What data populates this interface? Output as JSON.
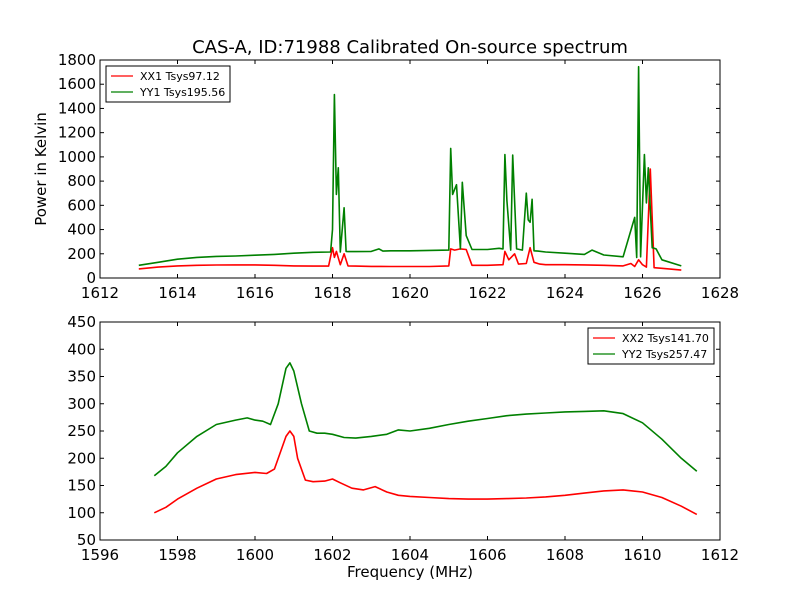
{
  "figure": {
    "title": "CAS-A, ID:71988 Calibrated On-source spectrum"
  },
  "chart_data": [
    {
      "type": "line",
      "title": "CAS-A, ID:71988 Calibrated On-source spectrum",
      "xlabel": "",
      "ylabel": "Power in Kelvin",
      "xlim": [
        1612,
        1628
      ],
      "ylim": [
        0,
        1800
      ],
      "xticks": [
        1612,
        1614,
        1616,
        1618,
        1620,
        1622,
        1624,
        1626,
        1628
      ],
      "yticks": [
        0,
        200,
        400,
        600,
        800,
        1000,
        1200,
        1400,
        1600,
        1800
      ],
      "grid": false,
      "legend": {
        "position": "top-left"
      },
      "series": [
        {
          "name": "XX1 Tsys97.12",
          "color": "#ff0000",
          "x": [
            1613.0,
            1613.5,
            1614.0,
            1614.5,
            1615.0,
            1615.5,
            1616.0,
            1616.5,
            1617.0,
            1617.5,
            1617.9,
            1618.0,
            1618.05,
            1618.1,
            1618.2,
            1618.3,
            1618.4,
            1618.6,
            1619.0,
            1619.5,
            1620.0,
            1620.5,
            1621.0,
            1621.05,
            1621.15,
            1621.3,
            1621.45,
            1621.6,
            1622.0,
            1622.4,
            1622.45,
            1622.55,
            1622.7,
            1622.8,
            1623.0,
            1623.1,
            1623.2,
            1623.35,
            1623.5,
            1624.0,
            1624.5,
            1625.0,
            1625.5,
            1625.7,
            1625.8,
            1625.9,
            1626.0,
            1626.1,
            1626.2,
            1626.3,
            1626.5,
            1627.0
          ],
          "y": [
            75,
            90,
            100,
            105,
            107,
            108,
            108,
            105,
            100,
            98,
            98,
            250,
            170,
            220,
            110,
            200,
            100,
            98,
            96,
            95,
            95,
            95,
            100,
            240,
            230,
            240,
            235,
            105,
            105,
            110,
            220,
            150,
            200,
            115,
            120,
            250,
            130,
            115,
            110,
            110,
            108,
            105,
            100,
            120,
            95,
            150,
            110,
            90,
            900,
            85,
            80,
            65
          ]
        },
        {
          "name": "YY1 Tsys195.56",
          "color": "#008000",
          "x": [
            1613.0,
            1613.5,
            1614.0,
            1614.5,
            1615.0,
            1615.5,
            1616.0,
            1616.5,
            1617.0,
            1617.5,
            1617.95,
            1618.0,
            1618.05,
            1618.1,
            1618.15,
            1618.2,
            1618.3,
            1618.35,
            1618.4,
            1618.6,
            1619.0,
            1619.2,
            1619.3,
            1619.5,
            1620.0,
            1620.5,
            1621.0,
            1621.05,
            1621.1,
            1621.2,
            1621.3,
            1621.35,
            1621.45,
            1621.6,
            1622.0,
            1622.3,
            1622.4,
            1622.45,
            1622.5,
            1622.6,
            1622.65,
            1622.75,
            1622.9,
            1623.0,
            1623.05,
            1623.1,
            1623.15,
            1623.2,
            1623.3,
            1623.5,
            1624.0,
            1624.5,
            1624.7,
            1625.0,
            1625.5,
            1625.8,
            1625.85,
            1625.9,
            1625.95,
            1626.05,
            1626.1,
            1626.15,
            1626.25,
            1626.35,
            1626.5,
            1627.0
          ],
          "y": [
            105,
            130,
            155,
            170,
            178,
            182,
            188,
            195,
            205,
            212,
            215,
            400,
            1515,
            690,
            910,
            215,
            580,
            220,
            218,
            218,
            220,
            240,
            222,
            225,
            225,
            228,
            230,
            1070,
            690,
            770,
            240,
            790,
            350,
            235,
            235,
            245,
            240,
            1020,
            640,
            230,
            1015,
            240,
            230,
            700,
            480,
            460,
            650,
            225,
            222,
            215,
            205,
            195,
            230,
            190,
            175,
            500,
            170,
            1745,
            175,
            1020,
            620,
            910,
            250,
            240,
            150,
            100
          ]
        }
      ]
    },
    {
      "type": "line",
      "title": "",
      "xlabel": "Frequency (MHz)",
      "ylabel": "",
      "xlim": [
        1596,
        1612
      ],
      "ylim": [
        50,
        450
      ],
      "xticks": [
        1596,
        1598,
        1600,
        1602,
        1604,
        1606,
        1608,
        1610,
        1612
      ],
      "yticks": [
        50,
        100,
        150,
        200,
        250,
        300,
        350,
        400,
        450
      ],
      "grid": false,
      "legend": {
        "position": "top-right"
      },
      "series": [
        {
          "name": "XX2 Tsys141.70",
          "color": "#ff0000",
          "x": [
            1597.4,
            1597.7,
            1598.0,
            1598.5,
            1599.0,
            1599.5,
            1600.0,
            1600.3,
            1600.5,
            1600.8,
            1600.9,
            1601.0,
            1601.1,
            1601.3,
            1601.5,
            1601.8,
            1602.0,
            1602.2,
            1602.5,
            1602.8,
            1603.1,
            1603.4,
            1603.7,
            1604.0,
            1604.5,
            1605.0,
            1605.5,
            1606.0,
            1606.5,
            1607.0,
            1607.5,
            1608.0,
            1608.5,
            1609.0,
            1609.5,
            1610.0,
            1610.5,
            1611.0,
            1611.4
          ],
          "y": [
            100,
            110,
            125,
            145,
            162,
            170,
            174,
            172,
            180,
            240,
            250,
            240,
            200,
            160,
            157,
            158,
            162,
            155,
            145,
            142,
            148,
            138,
            132,
            130,
            128,
            126,
            125,
            125,
            126,
            127,
            129,
            132,
            136,
            140,
            142,
            138,
            128,
            112,
            97
          ]
        },
        {
          "name": "YY2 Tsys257.47",
          "color": "#008000",
          "x": [
            1597.4,
            1597.7,
            1598.0,
            1598.5,
            1599.0,
            1599.5,
            1599.8,
            1600.0,
            1600.2,
            1600.4,
            1600.6,
            1600.8,
            1600.9,
            1601.0,
            1601.2,
            1601.4,
            1601.6,
            1601.8,
            1602.0,
            1602.3,
            1602.6,
            1603.0,
            1603.4,
            1603.7,
            1604.0,
            1604.5,
            1605.0,
            1605.5,
            1606.0,
            1606.5,
            1607.0,
            1607.5,
            1608.0,
            1608.5,
            1609.0,
            1609.5,
            1610.0,
            1610.5,
            1611.0,
            1611.4
          ],
          "y": [
            168,
            185,
            210,
            240,
            262,
            270,
            274,
            270,
            268,
            262,
            300,
            365,
            375,
            360,
            300,
            250,
            246,
            246,
            244,
            238,
            237,
            240,
            244,
            252,
            250,
            255,
            262,
            268,
            273,
            278,
            281,
            283,
            285,
            286,
            287,
            282,
            265,
            235,
            200,
            176
          ]
        }
      ]
    }
  ]
}
